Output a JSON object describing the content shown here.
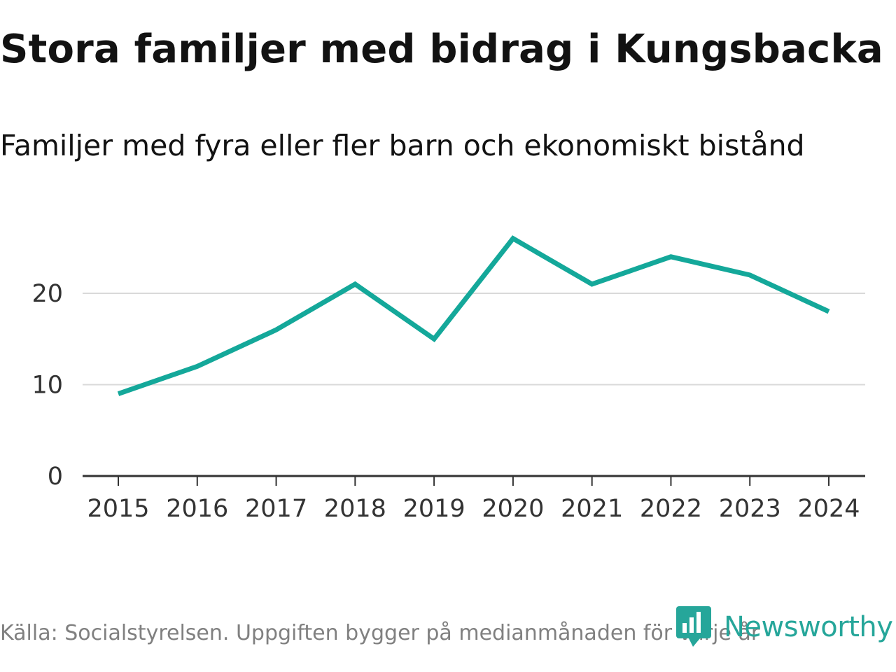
{
  "chart_data": {
    "type": "line",
    "title": "Stora familjer med bidrag i Kungsbacka",
    "subtitle": "Familjer med fyra eller fler barn och ekonomiskt bistånd",
    "categories": [
      "2015",
      "2016",
      "2017",
      "2018",
      "2019",
      "2020",
      "2021",
      "2022",
      "2023",
      "2024"
    ],
    "series": [
      {
        "name": "Familjer",
        "values": [
          9,
          12,
          16,
          21,
          15,
          26,
          21,
          24,
          22,
          18
        ]
      }
    ],
    "yticks": [
      "0",
      "10",
      "20"
    ],
    "ylim": [
      0,
      30
    ],
    "grid": true,
    "xlabel": "",
    "ylabel": "",
    "line_color": "#14a89a"
  },
  "source": "Källa: Socialstyrelsen. Uppgiften bygger på medianmånaden för varje år",
  "brand": {
    "name": "Newsworthy",
    "color": "#26a69a"
  }
}
